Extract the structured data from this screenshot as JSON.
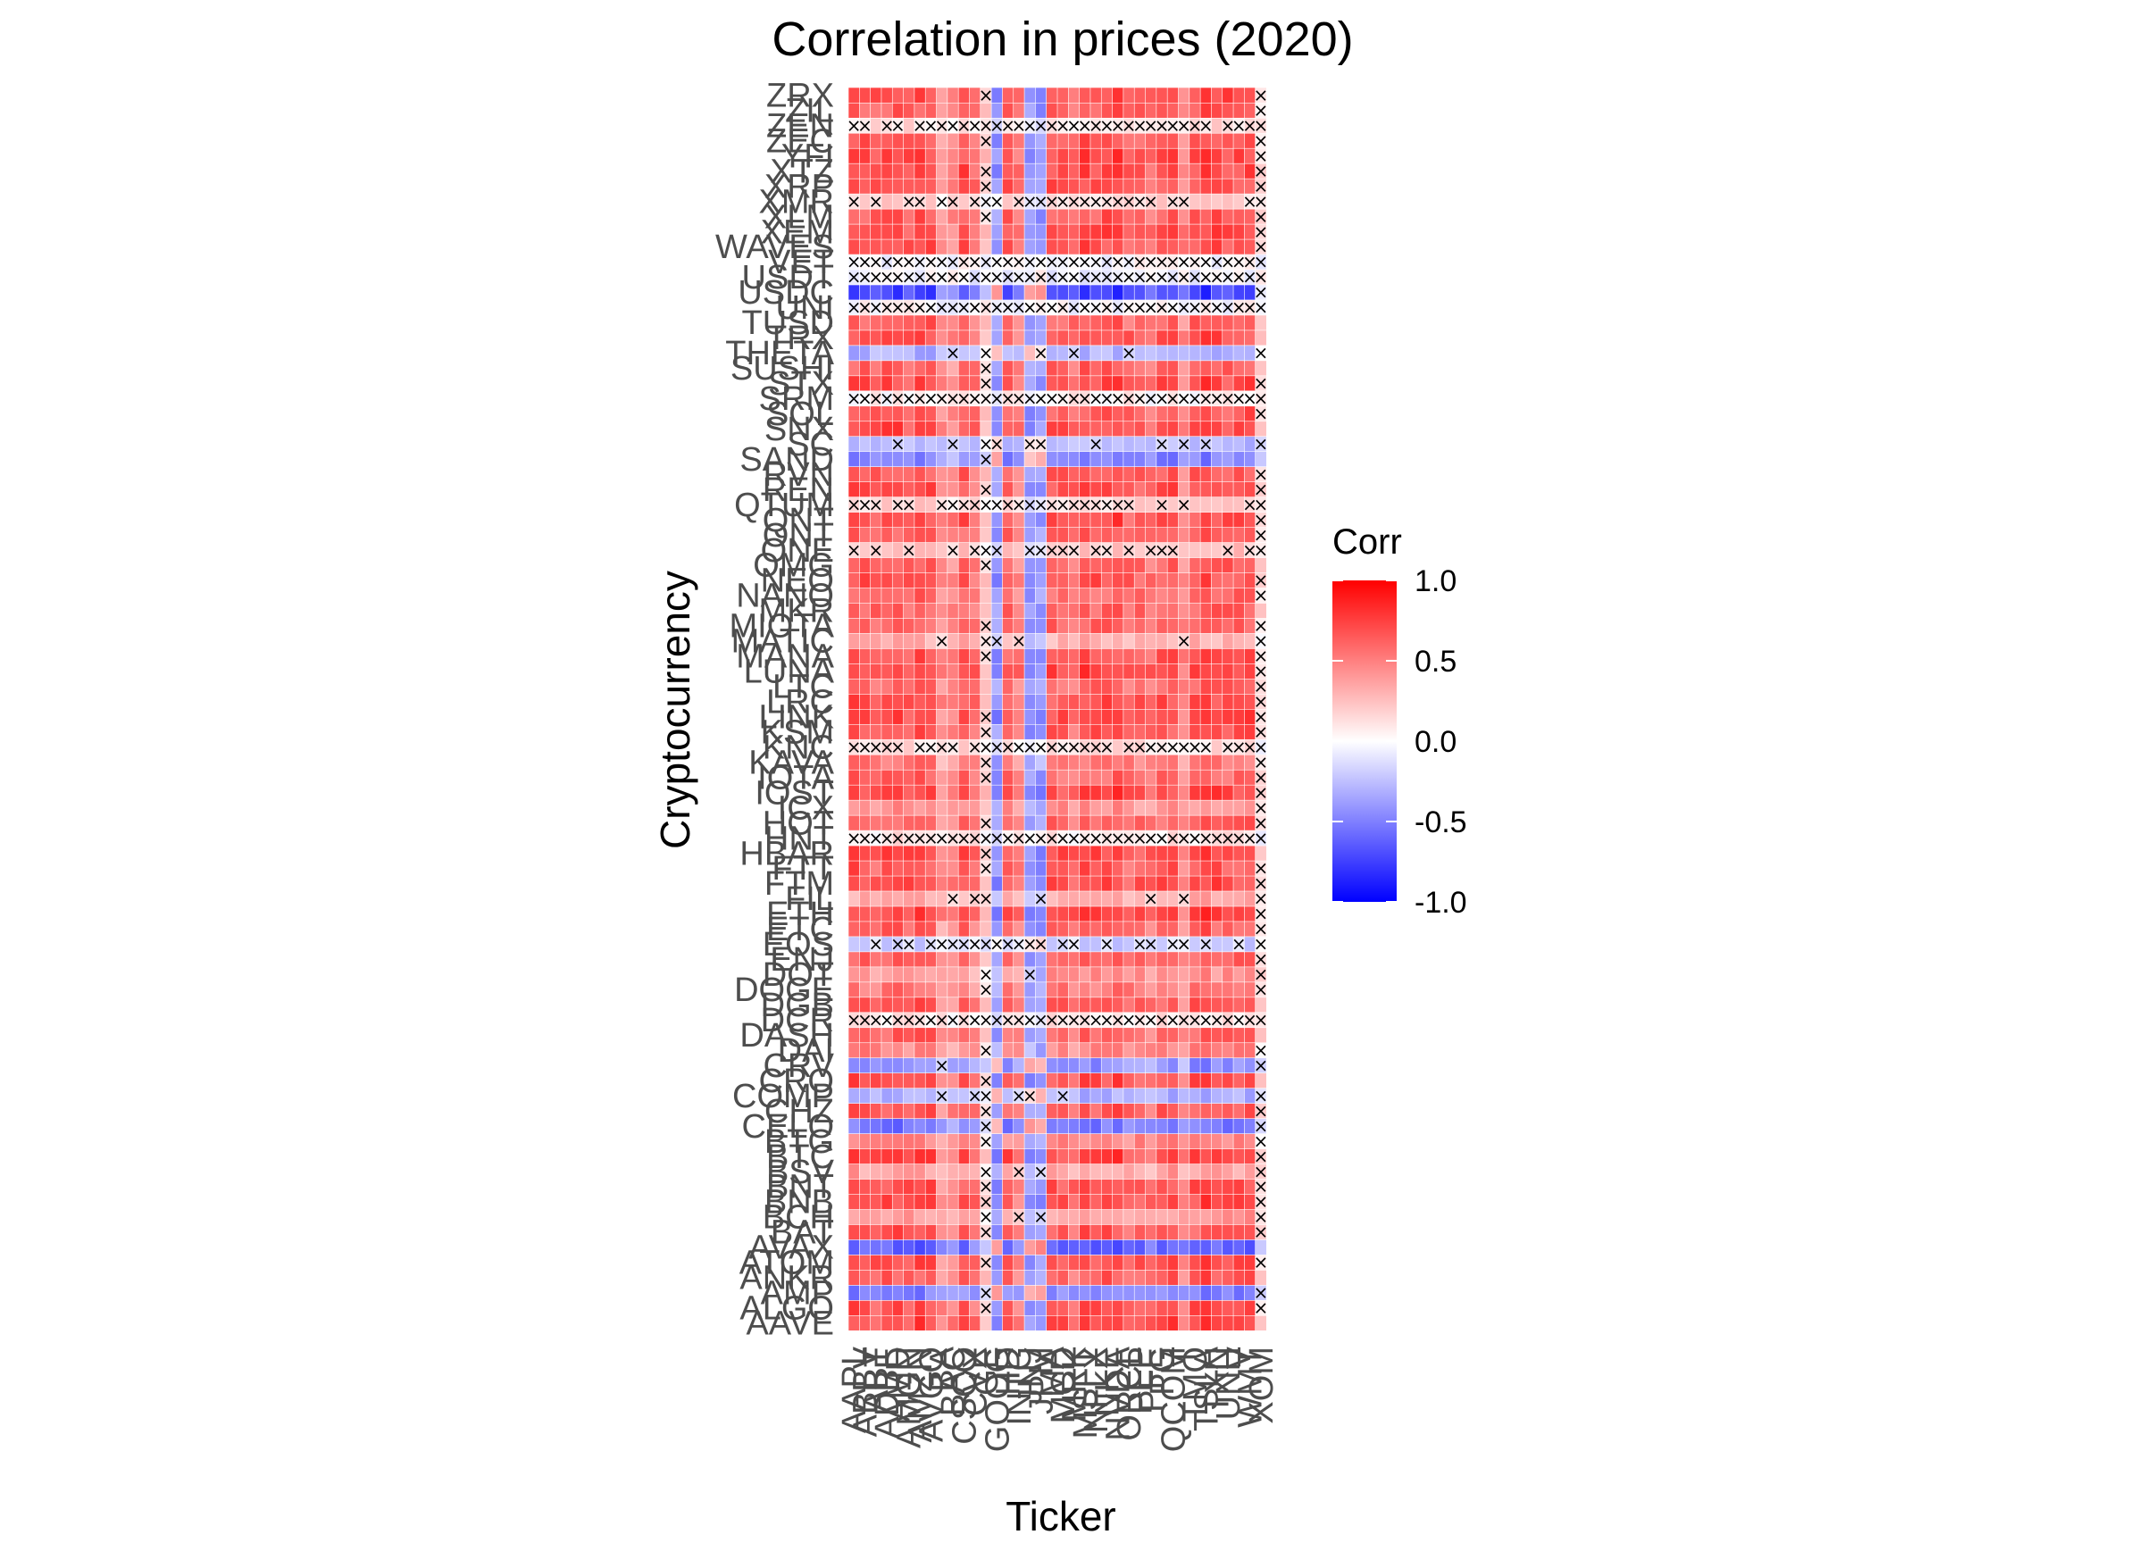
{
  "chart_data": {
    "type": "heatmap",
    "title": "Correlation in prices (2020)",
    "xlabel": "Ticker",
    "ylabel": "Cryptocurrency",
    "x": [
      "AAPL",
      "ABBV",
      "ABT",
      "ADBE",
      "AMD",
      "AMGN",
      "AMZN",
      "AVGO",
      "BA",
      "BAC",
      "CSCO",
      "CVX",
      "GE",
      "GOOG",
      "HD",
      "INTC",
      "JNJ",
      "JPM",
      "MA",
      "MCD",
      "MRK",
      "MSFT",
      "NFLX",
      "NKE",
      "NVDA",
      "ORCL",
      "PEP",
      "PFE",
      "PG",
      "QCOM",
      "T",
      "TMO",
      "TSLA",
      "TXN",
      "UNH",
      "V",
      "WMT",
      "XOM"
    ],
    "y": [
      "AAVE",
      "ALGO",
      "AMP",
      "ANKR",
      "ATOM",
      "AVAX",
      "BAT",
      "BCH",
      "BNB",
      "BNT",
      "BSV",
      "BTC",
      "BTG",
      "CELO",
      "CHZ",
      "COMP",
      "CRO",
      "CRV",
      "DAI",
      "DASH",
      "DCR",
      "DGB",
      "DOGE",
      "DOT",
      "ENJ",
      "EOS",
      "ETC",
      "ETH",
      "FIL",
      "FTM",
      "FTT",
      "HBAR",
      "HNT",
      "HOT",
      "ICX",
      "IOST",
      "IOTA",
      "KAVA",
      "KNC",
      "KSM",
      "LINK",
      "LRC",
      "LTC",
      "LUNA",
      "MANA",
      "MATIC",
      "MIOTA",
      "MKR",
      "NANO",
      "NEO",
      "OMG",
      "ONE",
      "ONT",
      "QNT",
      "QTUM",
      "REN",
      "RVN",
      "SAND",
      "SC",
      "SNX",
      "SOL",
      "SRM",
      "STX",
      "SUSHI",
      "THETA",
      "TRX",
      "TUSD",
      "UNI",
      "USDC",
      "USDT",
      "VET",
      "WAVES",
      "XEM",
      "XLM",
      "XMR",
      "XRP",
      "XTZ",
      "YFI",
      "ZEC",
      "ZEN",
      "ZIL",
      "ZRX"
    ],
    "row_base": [
      0.82,
      0.78,
      -0.55,
      0.72,
      0.8,
      -0.7,
      0.75,
      0.45,
      0.8,
      0.78,
      0.42,
      0.82,
      0.55,
      -0.6,
      0.75,
      -0.35,
      0.78,
      -0.5,
      0.55,
      0.7,
      0.1,
      0.75,
      0.62,
      0.48,
      0.7,
      -0.2,
      0.68,
      0.85,
      0.35,
      0.8,
      0.75,
      0.82,
      0.1,
      0.7,
      0.5,
      0.82,
      0.68,
      0.6,
      0.15,
      0.75,
      0.82,
      0.78,
      0.7,
      0.85,
      0.75,
      0.35,
      0.7,
      0.72,
      0.68,
      0.78,
      0.72,
      0.25,
      0.7,
      0.8,
      0.2,
      0.78,
      0.75,
      -0.55,
      -0.3,
      0.8,
      0.75,
      0.05,
      0.8,
      0.7,
      -0.35,
      0.78,
      0.72,
      0.0,
      -0.85,
      -0.05,
      0.0,
      0.78,
      0.8,
      0.75,
      0.2,
      0.78,
      0.82,
      0.82,
      0.75,
      0.15,
      0.72,
      0.82
    ],
    "col_base": [
      0.9,
      0.85,
      0.8,
      0.88,
      0.9,
      0.82,
      0.9,
      0.88,
      0.55,
      0.6,
      0.85,
      0.7,
      0.25,
      0.9,
      0.85,
      0.65,
      0.8,
      0.55,
      0.85,
      0.82,
      0.75,
      0.9,
      0.85,
      0.88,
      0.92,
      0.78,
      0.8,
      0.72,
      0.85,
      0.88,
      0.62,
      0.85,
      0.95,
      0.88,
      0.85,
      0.86,
      0.88,
      0.2
    ],
    "col_negative": [
      "GOOG",
      "JPM",
      "JNJ"
    ],
    "significance_marker": "×",
    "legend": {
      "title": "Corr",
      "ticks": [
        "1.0",
        "0.5",
        "0.0",
        "-0.5",
        "-1.0"
      ],
      "colors": {
        "high": "#ff0000",
        "mid": "#ffffff",
        "low": "#0000ff"
      },
      "range": [
        -1,
        1
      ]
    },
    "grid": false
  }
}
